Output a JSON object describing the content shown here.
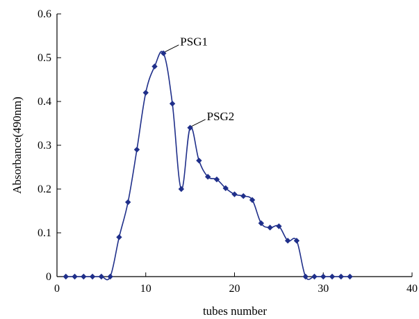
{
  "chart_data": {
    "type": "line",
    "title": "",
    "xlabel": "tubes number",
    "ylabel": "Absorbance(490nm)",
    "xlim": [
      0,
      40
    ],
    "ylim": [
      0,
      0.6
    ],
    "xticks": [
      0,
      10,
      20,
      30,
      40
    ],
    "yticks": [
      0,
      0.1,
      0.2,
      0.3,
      0.4,
      0.5,
      0.6
    ],
    "xtick_labels": [
      "0",
      "10",
      "20",
      "30",
      "40"
    ],
    "ytick_labels": [
      "0",
      "0.1",
      "0.2",
      "0.3",
      "0.4",
      "0.5",
      "0.6"
    ],
    "grid": false,
    "legend": "none",
    "series": [
      {
        "color": "#1f2f8a",
        "marker": "diamond",
        "x": [
          1,
          2,
          3,
          4,
          5,
          6,
          7,
          8,
          9,
          10,
          11,
          12,
          13,
          14,
          15,
          16,
          17,
          18,
          19,
          20,
          21,
          22,
          23,
          24,
          25,
          26,
          27,
          28,
          29,
          30,
          31,
          32,
          33
        ],
        "y": [
          0,
          0,
          0,
          0,
          0,
          0,
          0.09,
          0.17,
          0.29,
          0.42,
          0.48,
          0.51,
          0.395,
          0.2,
          0.34,
          0.265,
          0.228,
          0.222,
          0.202,
          0.188,
          0.184,
          0.175,
          0.122,
          0.112,
          0.115,
          0.082,
          0.082,
          0,
          0,
          0,
          0,
          0,
          0
        ]
      }
    ],
    "annotations": [
      {
        "text": "PSG1",
        "x": 12,
        "y": 0.51
      },
      {
        "text": "PSG2",
        "x": 15,
        "y": 0.34
      }
    ]
  }
}
